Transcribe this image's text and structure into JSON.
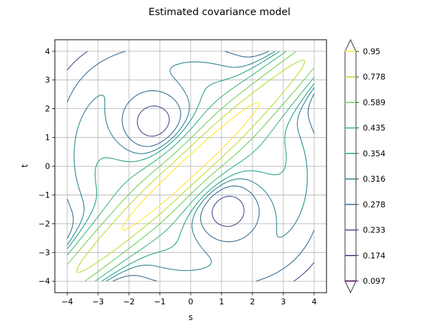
{
  "chart_data": {
    "type": "contour",
    "title": "Estimated covariance model",
    "xlabel": "s",
    "ylabel": "t",
    "xlim": [
      -4.4,
      4.4
    ],
    "ylim": [
      -4.4,
      4.4
    ],
    "xticks": [
      "−4",
      "−3",
      "−2",
      "−1",
      "0",
      "1",
      "2",
      "3",
      "4"
    ],
    "yticks": [
      "−4",
      "−3",
      "−2",
      "−1",
      "0",
      "1",
      "2",
      "3",
      "4"
    ],
    "grid": true,
    "colorbar": {
      "levels": [
        "0.097",
        "0.174",
        "0.233",
        "0.278",
        "0.316",
        "0.354",
        "0.435",
        "0.589",
        "0.778",
        "0.95"
      ],
      "colors": [
        "#440154",
        "#482878",
        "#3e4989",
        "#31688e",
        "#26828e",
        "#1f9e89",
        "#35b779",
        "#6ece58",
        "#b5de2b",
        "#fde725"
      ],
      "extend": "both"
    },
    "model": {
      "description_levels": [
        0.097,
        0.174,
        0.233,
        0.278,
        0.316,
        0.354,
        0.435,
        0.589,
        0.778,
        0.95
      ]
    }
  }
}
